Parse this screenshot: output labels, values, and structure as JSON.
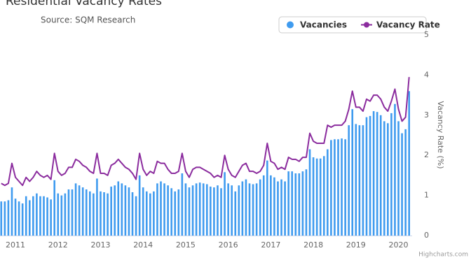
{
  "chart_data": {
    "type": "combo",
    "title": "Residential Vacancy Rates",
    "subtitle": "Source: SQM Research",
    "y_label": "Vacancy Rate (%)",
    "credit": "Highcharts.com",
    "categories": [
      null,
      null,
      null,
      null,
      "2011",
      null,
      null,
      null,
      null,
      null,
      null,
      null,
      null,
      null,
      null,
      null,
      "2012",
      null,
      null,
      null,
      null,
      null,
      null,
      null,
      null,
      null,
      null,
      null,
      "2013",
      null,
      null,
      null,
      null,
      null,
      null,
      null,
      null,
      null,
      null,
      null,
      "2014",
      null,
      null,
      null,
      null,
      null,
      null,
      null,
      null,
      null,
      null,
      null,
      "2015",
      null,
      null,
      null,
      null,
      null,
      null,
      null,
      null,
      null,
      null,
      null,
      "2016",
      null,
      null,
      null,
      null,
      null,
      null,
      null,
      null,
      null,
      null,
      null,
      "2017",
      null,
      null,
      null,
      null,
      null,
      null,
      null,
      null,
      null,
      null,
      null,
      "2018",
      null,
      null,
      null,
      null,
      null,
      null,
      null,
      null,
      null,
      null,
      null,
      "2019",
      null,
      null,
      null,
      null,
      null,
      null,
      null,
      null,
      null,
      null,
      null,
      "2020",
      null,
      null,
      null
    ],
    "series": [
      {
        "name": "Vacancies",
        "type": "bar",
        "color": "#3f9bef",
        "values": [
          0.85,
          0.85,
          0.88,
          1.2,
          0.92,
          0.85,
          0.8,
          0.98,
          0.88,
          0.98,
          1.05,
          0.98,
          0.98,
          0.95,
          0.9,
          1.38,
          1.05,
          1.0,
          1.05,
          1.15,
          1.15,
          1.3,
          1.25,
          1.2,
          1.15,
          1.1,
          1.05,
          1.42,
          1.1,
          1.08,
          1.05,
          1.22,
          1.25,
          1.35,
          1.3,
          1.25,
          1.2,
          1.08,
          0.98,
          1.5,
          1.2,
          1.1,
          1.05,
          1.1,
          1.3,
          1.35,
          1.3,
          1.25,
          1.18,
          1.1,
          1.15,
          1.55,
          1.3,
          1.2,
          1.25,
          1.3,
          1.32,
          1.3,
          1.28,
          1.22,
          1.2,
          1.25,
          1.18,
          1.58,
          1.3,
          1.25,
          1.1,
          1.25,
          1.35,
          1.4,
          1.3,
          1.28,
          1.3,
          1.4,
          1.5,
          1.87,
          1.5,
          1.45,
          1.35,
          1.4,
          1.35,
          1.6,
          1.6,
          1.55,
          1.55,
          1.6,
          1.65,
          2.15,
          1.95,
          1.92,
          1.92,
          1.98,
          2.15,
          2.38,
          2.4,
          2.4,
          2.42,
          2.4,
          2.75,
          3.15,
          2.78,
          2.75,
          2.75,
          2.95,
          2.98,
          3.1,
          3.08,
          3.0,
          2.85,
          2.8,
          3.05,
          3.28,
          2.85,
          2.55,
          2.65,
          3.6
        ]
      },
      {
        "name": "Vacancy Rate",
        "type": "line",
        "color": "#8b2c9e",
        "values": [
          1.3,
          1.25,
          1.3,
          1.8,
          1.45,
          1.35,
          1.25,
          1.45,
          1.35,
          1.45,
          1.6,
          1.5,
          1.45,
          1.5,
          1.4,
          2.05,
          1.6,
          1.5,
          1.55,
          1.7,
          1.7,
          1.9,
          1.85,
          1.75,
          1.7,
          1.6,
          1.55,
          2.05,
          1.55,
          1.55,
          1.5,
          1.75,
          1.8,
          1.9,
          1.8,
          1.7,
          1.65,
          1.55,
          1.4,
          2.05,
          1.65,
          1.5,
          1.6,
          1.55,
          1.85,
          1.8,
          1.8,
          1.65,
          1.55,
          1.55,
          1.6,
          2.05,
          1.6,
          1.45,
          1.65,
          1.7,
          1.7,
          1.65,
          1.6,
          1.55,
          1.45,
          1.5,
          1.45,
          2.0,
          1.65,
          1.5,
          1.45,
          1.6,
          1.75,
          1.8,
          1.6,
          1.6,
          1.55,
          1.6,
          1.75,
          2.3,
          1.85,
          1.8,
          1.65,
          1.7,
          1.65,
          1.95,
          1.9,
          1.9,
          1.85,
          1.95,
          1.95,
          2.55,
          2.35,
          2.3,
          2.3,
          2.3,
          2.75,
          2.7,
          2.75,
          2.75,
          2.75,
          2.85,
          3.15,
          3.6,
          3.2,
          3.2,
          3.1,
          3.4,
          3.35,
          3.5,
          3.5,
          3.4,
          3.2,
          3.1,
          3.35,
          3.65,
          3.15,
          2.85,
          2.95,
          3.95
        ]
      }
    ],
    "ylim": [
      0,
      5
    ],
    "yticks": [
      0,
      1,
      2,
      3,
      4,
      5
    ],
    "grid": false
  }
}
